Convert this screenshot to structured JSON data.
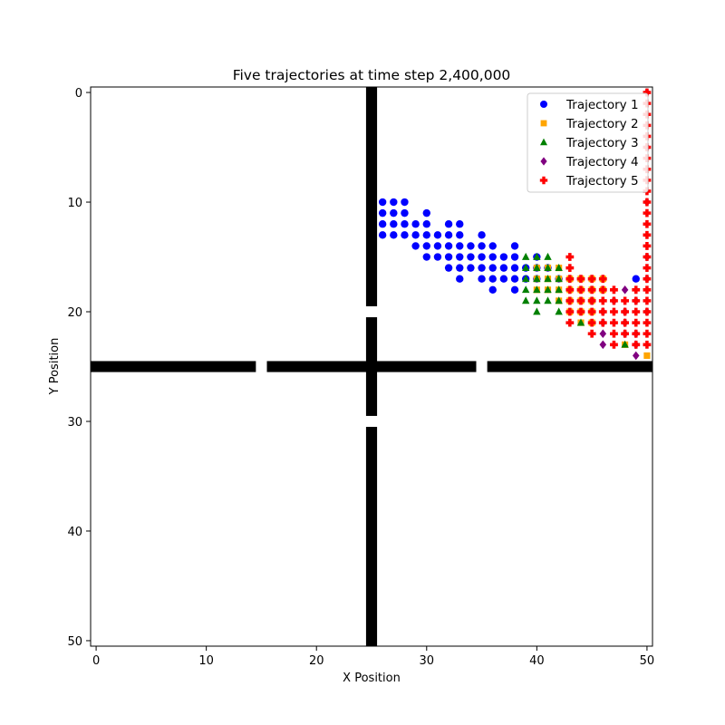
{
  "chart_data": {
    "type": "scatter",
    "title": "Five trajectories at time step 2,400,000",
    "xlabel": "X Position",
    "ylabel": "Y Position",
    "xlim": [
      -0.5,
      50.5
    ],
    "ylim": [
      50.5,
      -0.5
    ],
    "y_inverted": true,
    "xticks": [
      0,
      10,
      20,
      30,
      40,
      50
    ],
    "yticks": [
      0,
      10,
      20,
      30,
      40,
      50
    ],
    "grid": false,
    "legend_position": "top-right",
    "walls": {
      "color": "#000000",
      "horizontal_row": 25,
      "horizontal_x_segments": [
        [
          0,
          14
        ],
        [
          16,
          34
        ],
        [
          36,
          50
        ]
      ],
      "vertical_column": 25,
      "vertical_y_segments": [
        [
          0,
          19
        ],
        [
          21,
          29
        ],
        [
          31,
          50
        ]
      ]
    },
    "series": [
      {
        "name": "Trajectory 1",
        "color": "#0000ff",
        "marker": "circle",
        "points": [
          [
            26,
            10
          ],
          [
            27,
            10
          ],
          [
            28,
            10
          ],
          [
            26,
            11
          ],
          [
            27,
            11
          ],
          [
            28,
            11
          ],
          [
            30,
            11
          ],
          [
            26,
            12
          ],
          [
            27,
            12
          ],
          [
            28,
            12
          ],
          [
            29,
            12
          ],
          [
            30,
            12
          ],
          [
            32,
            12
          ],
          [
            33,
            12
          ],
          [
            26,
            13
          ],
          [
            27,
            13
          ],
          [
            28,
            13
          ],
          [
            29,
            13
          ],
          [
            30,
            13
          ],
          [
            31,
            13
          ],
          [
            32,
            13
          ],
          [
            33,
            13
          ],
          [
            35,
            13
          ],
          [
            29,
            14
          ],
          [
            30,
            14
          ],
          [
            31,
            14
          ],
          [
            32,
            14
          ],
          [
            33,
            14
          ],
          [
            34,
            14
          ],
          [
            35,
            14
          ],
          [
            36,
            14
          ],
          [
            38,
            14
          ],
          [
            30,
            15
          ],
          [
            31,
            15
          ],
          [
            32,
            15
          ],
          [
            33,
            15
          ],
          [
            34,
            15
          ],
          [
            35,
            15
          ],
          [
            36,
            15
          ],
          [
            37,
            15
          ],
          [
            38,
            15
          ],
          [
            40,
            15
          ],
          [
            32,
            16
          ],
          [
            33,
            16
          ],
          [
            34,
            16
          ],
          [
            35,
            16
          ],
          [
            36,
            16
          ],
          [
            37,
            16
          ],
          [
            38,
            16
          ],
          [
            39,
            16
          ],
          [
            40,
            16
          ],
          [
            41,
            16
          ],
          [
            33,
            17
          ],
          [
            35,
            17
          ],
          [
            36,
            17
          ],
          [
            37,
            17
          ],
          [
            38,
            17
          ],
          [
            39,
            17
          ],
          [
            40,
            17
          ],
          [
            42,
            17
          ],
          [
            49,
            17
          ],
          [
            36,
            18
          ],
          [
            38,
            18
          ]
        ]
      },
      {
        "name": "Trajectory 2",
        "color": "#ffa500",
        "marker": "square",
        "points": [
          [
            40,
            16
          ],
          [
            41,
            16
          ],
          [
            42,
            16
          ],
          [
            40,
            17
          ],
          [
            41,
            17
          ],
          [
            42,
            17
          ],
          [
            43,
            17
          ],
          [
            44,
            17
          ],
          [
            45,
            17
          ],
          [
            46,
            17
          ],
          [
            40,
            18
          ],
          [
            41,
            18
          ],
          [
            42,
            18
          ],
          [
            43,
            18
          ],
          [
            44,
            18
          ],
          [
            45,
            18
          ],
          [
            46,
            18
          ],
          [
            42,
            19
          ],
          [
            43,
            19
          ],
          [
            44,
            19
          ],
          [
            45,
            19
          ],
          [
            43,
            20
          ],
          [
            44,
            20
          ],
          [
            45,
            20
          ],
          [
            44,
            21
          ],
          [
            45,
            21
          ],
          [
            48,
            23
          ],
          [
            50,
            24
          ]
        ]
      },
      {
        "name": "Trajectory 3",
        "color": "#008000",
        "marker": "triangle",
        "points": [
          [
            39,
            15
          ],
          [
            40,
            15
          ],
          [
            41,
            15
          ],
          [
            39,
            16
          ],
          [
            40,
            16
          ],
          [
            41,
            16
          ],
          [
            42,
            16
          ],
          [
            39,
            17
          ],
          [
            40,
            17
          ],
          [
            41,
            17
          ],
          [
            42,
            17
          ],
          [
            39,
            18
          ],
          [
            40,
            18
          ],
          [
            41,
            18
          ],
          [
            42,
            18
          ],
          [
            39,
            19
          ],
          [
            40,
            19
          ],
          [
            41,
            19
          ],
          [
            42,
            19
          ],
          [
            40,
            20
          ],
          [
            42,
            20
          ],
          [
            44,
            21
          ],
          [
            48,
            23
          ]
        ]
      },
      {
        "name": "Trajectory 4",
        "color": "#800080",
        "marker": "diamond",
        "points": [
          [
            50,
            0
          ],
          [
            50,
            5
          ],
          [
            50,
            10
          ],
          [
            50,
            15
          ],
          [
            50,
            17
          ],
          [
            45,
            19
          ],
          [
            47,
            19
          ],
          [
            49,
            19
          ],
          [
            46,
            20
          ],
          [
            48,
            20
          ],
          [
            50,
            20
          ],
          [
            46,
            21
          ],
          [
            48,
            21
          ],
          [
            46,
            22
          ],
          [
            48,
            22
          ],
          [
            49,
            22
          ],
          [
            46,
            23
          ],
          [
            49,
            23
          ],
          [
            48,
            18
          ],
          [
            49,
            24
          ]
        ]
      },
      {
        "name": "Trajectory 5",
        "color": "#ff0000",
        "marker": "plus",
        "points": [
          [
            50,
            0
          ],
          [
            50,
            1
          ],
          [
            50,
            2
          ],
          [
            50,
            3
          ],
          [
            50,
            4
          ],
          [
            50,
            5
          ],
          [
            50,
            6
          ],
          [
            50,
            7
          ],
          [
            50,
            8
          ],
          [
            50,
            9
          ],
          [
            50,
            10
          ],
          [
            50,
            11
          ],
          [
            50,
            12
          ],
          [
            50,
            13
          ],
          [
            50,
            14
          ],
          [
            50,
            15
          ],
          [
            50,
            16
          ],
          [
            50,
            17
          ],
          [
            50,
            18
          ],
          [
            50,
            19
          ],
          [
            50,
            20
          ],
          [
            50,
            21
          ],
          [
            50,
            22
          ],
          [
            50,
            23
          ],
          [
            43,
            15
          ],
          [
            43,
            16
          ],
          [
            43,
            17
          ],
          [
            44,
            17
          ],
          [
            45,
            17
          ],
          [
            46,
            17
          ],
          [
            43,
            18
          ],
          [
            44,
            18
          ],
          [
            45,
            18
          ],
          [
            46,
            18
          ],
          [
            47,
            18
          ],
          [
            49,
            18
          ],
          [
            43,
            19
          ],
          [
            44,
            19
          ],
          [
            45,
            19
          ],
          [
            46,
            19
          ],
          [
            47,
            19
          ],
          [
            48,
            19
          ],
          [
            49,
            19
          ],
          [
            43,
            20
          ],
          [
            44,
            20
          ],
          [
            45,
            20
          ],
          [
            46,
            20
          ],
          [
            47,
            20
          ],
          [
            48,
            20
          ],
          [
            49,
            20
          ],
          [
            43,
            21
          ],
          [
            45,
            21
          ],
          [
            46,
            21
          ],
          [
            47,
            21
          ],
          [
            48,
            21
          ],
          [
            49,
            21
          ],
          [
            45,
            22
          ],
          [
            47,
            22
          ],
          [
            48,
            22
          ],
          [
            49,
            22
          ],
          [
            47,
            23
          ],
          [
            49,
            23
          ]
        ]
      }
    ]
  }
}
